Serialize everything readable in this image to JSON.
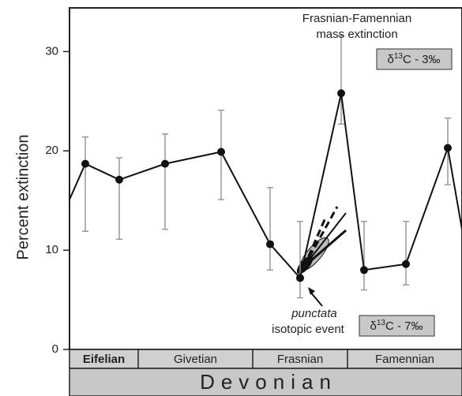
{
  "chart_data": {
    "type": "line",
    "y_label": "Percent extinction",
    "categories": [
      null,
      null,
      null,
      null,
      null,
      null,
      null,
      null,
      null,
      null,
      null,
      null
    ],
    "series": [
      {
        "color": "#111111",
        "values": [
          15.1,
          18.7,
          17.1,
          18.7,
          19.9,
          10.6,
          7.2,
          25.8,
          8.0,
          8.6,
          20.3,
          12.1
        ],
        "error_high": [
          null,
          21.4,
          19.3,
          21.7,
          24.1,
          16.3,
          12.9,
          31.6,
          12.9,
          12.9,
          23.3,
          null
        ],
        "error_low": [
          null,
          11.9,
          11.1,
          12.1,
          15.1,
          8.0,
          5.2,
          22.7,
          6.0,
          6.5,
          16.6,
          null
        ]
      }
    ],
    "ylim": [
      0,
      34.4
    ],
    "yticks": [
      0,
      10,
      20,
      30
    ],
    "stages": [
      "Eifelian",
      "Givetian",
      "Frasnian",
      "Famennian"
    ],
    "period": "Devonian",
    "annotations": {
      "mass_extinction": [
        "Frasnian-Famennian",
        "mass extinction"
      ],
      "isotope_top": {
        "prefix": "δ",
        "sup": "13",
        "suffix": "C - 3‰"
      },
      "punctata": {
        "italic": "punctata",
        "rest": "isotopic event"
      },
      "isotope_bottom": {
        "prefix": "δ",
        "sup": "13",
        "suffix": "C - 7‰"
      }
    }
  }
}
